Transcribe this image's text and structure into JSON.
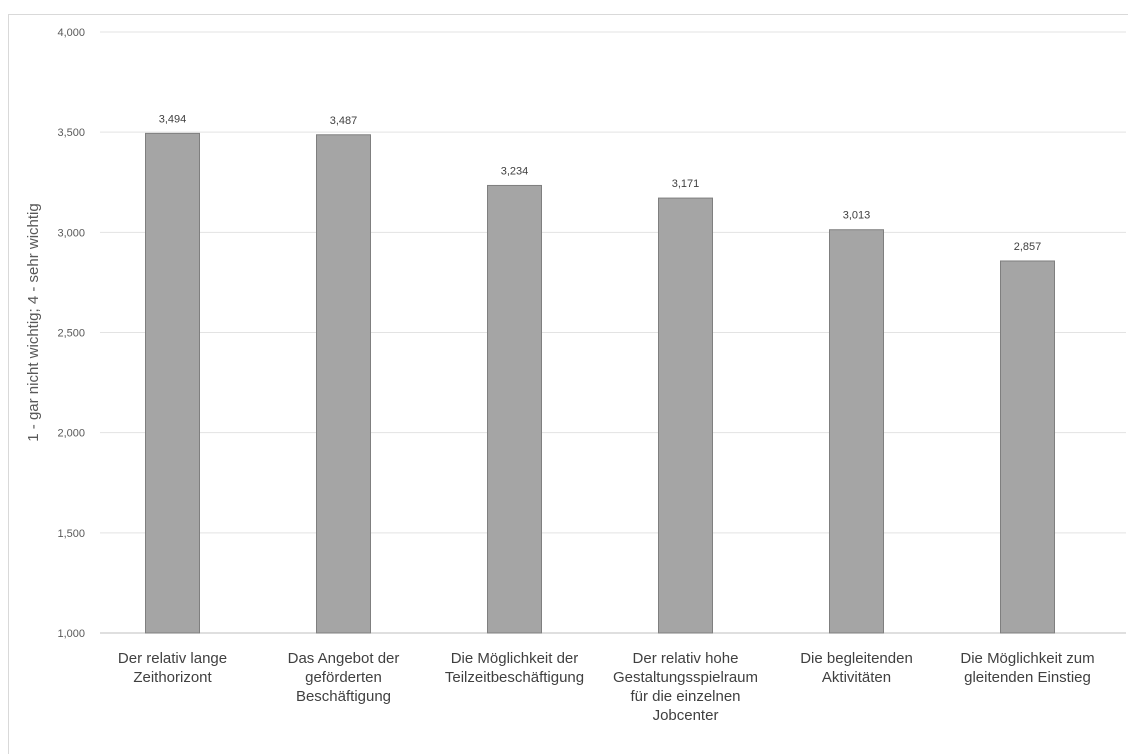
{
  "chart_data": {
    "type": "bar",
    "title": "",
    "xlabel": "",
    "ylabel": "1 - gar nicht wichtig; 4 - sehr wichtig",
    "ylim": [
      1,
      4
    ],
    "yticks": [
      "1,000",
      "1,500",
      "2,000",
      "2,500",
      "3,000",
      "3,500",
      "4,000"
    ],
    "ytick_values": [
      1,
      1.5,
      2,
      2.5,
      3,
      3.5,
      4
    ],
    "grid": true,
    "categories": [
      [
        "Der relativ lange",
        "Zeithorizont"
      ],
      [
        "Das Angebot der",
        "geförderten",
        "Beschäftigung"
      ],
      [
        "Die Möglichkeit der",
        "Teilzeitbeschäftigung"
      ],
      [
        "Der relativ hohe",
        "Gestaltungsspielraum",
        "für die einzelnen",
        "Jobcenter"
      ],
      [
        "Die begleitenden",
        "Aktivitäten"
      ],
      [
        "Die Möglichkeit zum",
        "gleitenden Einstieg"
      ]
    ],
    "values": [
      3.494,
      3.487,
      3.234,
      3.171,
      3.013,
      2.857
    ],
    "value_labels": [
      "3,494",
      "3,487",
      "3,234",
      "3,171",
      "3,013",
      "2,857"
    ],
    "bar_color": "#a5a5a5"
  }
}
